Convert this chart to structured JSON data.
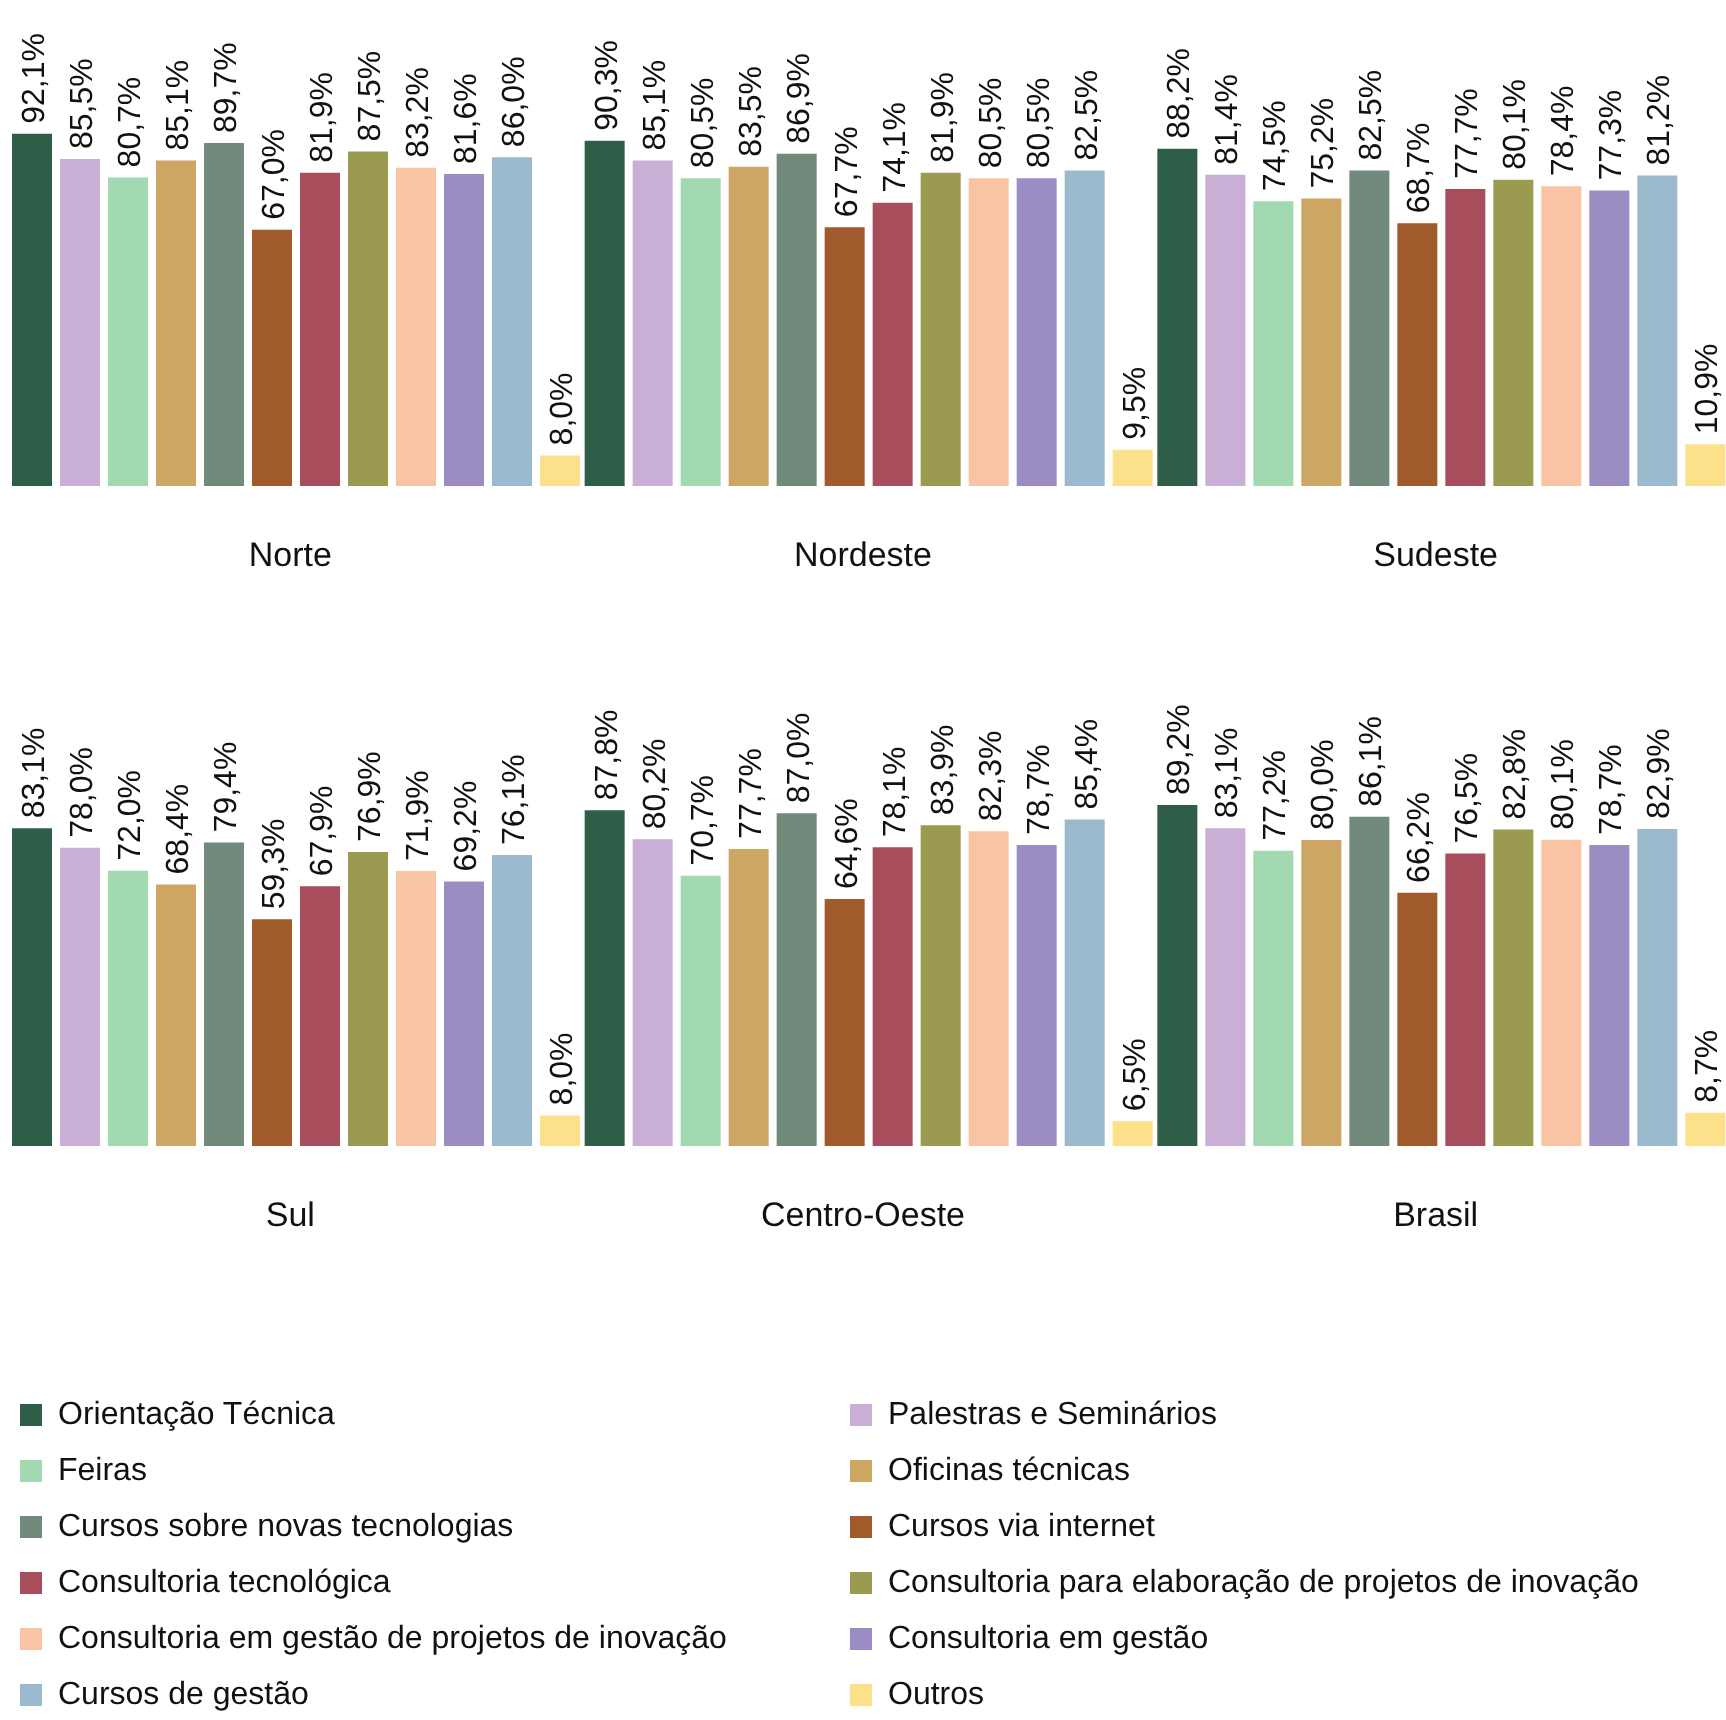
{
  "chart_data": [
    {
      "type": "bar",
      "categories": [
        "Norte",
        "Nordeste",
        "Sudeste"
      ],
      "series": [
        {
          "color": "#2f5e48",
          "values": [
            92.1,
            90.3,
            88.2
          ],
          "value_labels": [
            "92,1%",
            "90,3%",
            "88,2%"
          ]
        },
        {
          "color": "#c9aed6",
          "values": [
            85.5,
            85.1,
            81.4
          ],
          "value_labels": [
            "85,5%",
            "85,1%",
            "81,4%"
          ]
        },
        {
          "color": "#a3d9b0",
          "values": [
            80.7,
            80.5,
            74.5
          ],
          "value_labels": [
            "80,7%",
            "80,5%",
            "74,5%"
          ]
        },
        {
          "color": "#cea664",
          "values": [
            85.1,
            83.5,
            75.2
          ],
          "value_labels": [
            "85,1%",
            "83,5%",
            "75,2%"
          ]
        },
        {
          "color": "#718a7c",
          "values": [
            89.7,
            86.9,
            82.5
          ],
          "value_labels": [
            "89,7%",
            "86,9%",
            "82,5%"
          ]
        },
        {
          "color": "#a05a2c",
          "values": [
            67.0,
            67.7,
            68.7
          ],
          "value_labels": [
            "67,0%",
            "67,7%",
            "68,7%"
          ]
        },
        {
          "color": "#a84d5c",
          "values": [
            81.9,
            74.1,
            77.7
          ],
          "value_labels": [
            "81,9%",
            "74,1%",
            "77,7%"
          ]
        },
        {
          "color": "#9a9a50",
          "values": [
            87.5,
            81.9,
            80.1
          ],
          "value_labels": [
            "87,5%",
            "81,9%",
            "80,1%"
          ]
        },
        {
          "color": "#f9c4a4",
          "values": [
            83.2,
            80.5,
            78.4
          ],
          "value_labels": [
            "83,2%",
            "80,5%",
            "78,4%"
          ]
        },
        {
          "color": "#9b8dc4",
          "values": [
            81.6,
            80.5,
            77.3
          ],
          "value_labels": [
            "81,6%",
            "80,5%",
            "77,3%"
          ]
        },
        {
          "color": "#9ab9cc",
          "values": [
            86.0,
            82.5,
            81.2
          ],
          "value_labels": [
            "86,0%",
            "82,5%",
            "81,2%"
          ]
        },
        {
          "color": "#fde08a",
          "values": [
            8.0,
            9.5,
            10.9
          ],
          "value_labels": [
            "8,0%",
            "9,5%",
            "10,9%"
          ]
        }
      ]
    },
    {
      "type": "bar",
      "legend": "bottom",
      "categories": [
        "Sul",
        "Centro-Oeste",
        "Brasil"
      ],
      "series": [
        {
          "name": "Orientação Técnica",
          "color": "#2f5e48",
          "values": [
            83.1,
            87.8,
            89.2
          ],
          "value_labels": [
            "83,1%",
            "87,8%",
            "89,2%"
          ]
        },
        {
          "name": "Palestras e Seminários",
          "color": "#c9aed6",
          "values": [
            78.0,
            80.2,
            83.1
          ],
          "value_labels": [
            "78,0%",
            "80,2%",
            "83,1%"
          ]
        },
        {
          "name": "Feiras",
          "color": "#a3d9b0",
          "values": [
            72.0,
            70.7,
            77.2
          ],
          "value_labels": [
            "72,0%",
            "70,7%",
            "77,2%"
          ]
        },
        {
          "name": "Oficinas técnicas",
          "color": "#cea664",
          "values": [
            68.4,
            77.7,
            80.0
          ],
          "value_labels": [
            "68,4%",
            "77,7%",
            "80,0%"
          ]
        },
        {
          "name": "Cursos sobre novas tecnologias",
          "color": "#718a7c",
          "values": [
            79.4,
            87.0,
            86.1
          ],
          "value_labels": [
            "79,4%",
            "87,0%",
            "86,1%"
          ]
        },
        {
          "name": "Cursos via internet",
          "color": "#a05a2c",
          "values": [
            59.3,
            64.6,
            66.2
          ],
          "value_labels": [
            "59,3%",
            "64,6%",
            "66,2%"
          ]
        },
        {
          "name": "Consultoria tecnológica",
          "color": "#a84d5c",
          "values": [
            67.9,
            78.1,
            76.5
          ],
          "value_labels": [
            "67,9%",
            "78,1%",
            "76,5%"
          ]
        },
        {
          "name": "Consultoria para elaboração de projetos de inovação",
          "color": "#9a9a50",
          "values": [
            76.9,
            83.9,
            82.8
          ],
          "value_labels": [
            "76,9%",
            "83,9%",
            "82,8%"
          ]
        },
        {
          "name": "Consultoria em gestão de projetos de inovação",
          "color": "#f9c4a4",
          "values": [
            71.9,
            82.3,
            80.1
          ],
          "value_labels": [
            "71,9%",
            "82,3%",
            "80,1%"
          ]
        },
        {
          "name": "Consultoria em gestão",
          "color": "#9b8dc4",
          "values": [
            69.2,
            78.7,
            78.7
          ],
          "value_labels": [
            "69,2%",
            "78,7%",
            "78,7%"
          ]
        },
        {
          "name": "Cursos de gestão",
          "color": "#9ab9cc",
          "values": [
            76.1,
            85.4,
            82.9
          ],
          "value_labels": [
            "76,1%",
            "85,4%",
            "82,9%"
          ]
        },
        {
          "name": "Outros",
          "color": "#fde08a",
          "values": [
            8.0,
            6.5,
            8.7
          ],
          "value_labels": [
            "8,0%",
            "6,5%",
            "8,7%"
          ]
        }
      ]
    }
  ]
}
